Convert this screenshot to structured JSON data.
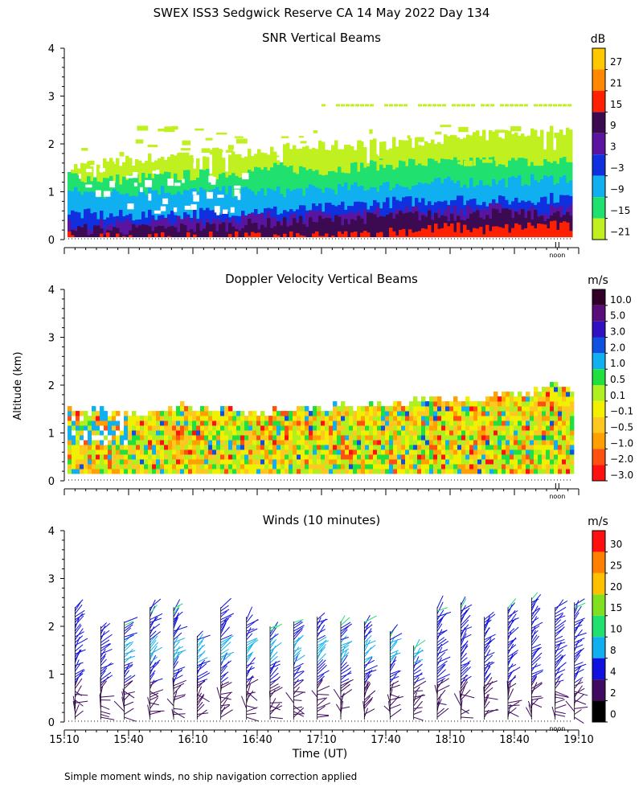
{
  "page": {
    "title": "SWEX ISS3 Sedgwick Reserve CA  14 May 2022 Day 134",
    "ylabel": "Altitude (km)",
    "xlabel": "Time (UT)",
    "footnote": "Simple moment winds, no ship navigation correction applied",
    "noon_label": "noon"
  },
  "chart_data": [
    {
      "type": "heatmap",
      "title": "SNR Vertical Beams",
      "ylim": [
        0,
        4
      ],
      "y_ticks": [
        "0",
        "1",
        "2",
        "3",
        "4"
      ],
      "xlim_minutes_after_1510": [
        0,
        240
      ],
      "colorbar_unit": "dB",
      "colorbar_labels": [
        "27",
        "21",
        "15",
        "9",
        "3",
        "−3",
        "−9",
        "−15",
        "−21"
      ],
      "colorbar_colors": [
        "#ffc800",
        "#ff8800",
        "#ff2000",
        "#3c0a50",
        "#5a14a0",
        "#1030e0",
        "#10b0f0",
        "#20e070",
        "#c0f020"
      ],
      "layers": [
        {
          "color": "#c0f020",
          "low": 0.05,
          "high": [
            1.5,
            1.6,
            1.7,
            1.8,
            1.85,
            1.9,
            1.95,
            2.0,
            2.05,
            2.1,
            2.2,
            2.25,
            2.3
          ]
        },
        {
          "color": "#20e070",
          "low": 0.05,
          "high": [
            1.35,
            1.25,
            1.3,
            1.35,
            1.4,
            1.5,
            1.45,
            1.55,
            1.6,
            1.6,
            1.65,
            1.6,
            1.7
          ]
        },
        {
          "color": "#10b0f0",
          "low": 0.05,
          "high": [
            1.0,
            0.95,
            1.05,
            1.0,
            1.0,
            1.0,
            1.05,
            1.1,
            1.15,
            1.2,
            1.2,
            1.25,
            1.3
          ]
        },
        {
          "color": "#1030e0",
          "low": 0.05,
          "high": [
            0.55,
            0.5,
            0.5,
            0.55,
            0.6,
            0.6,
            0.65,
            0.75,
            0.8,
            0.85,
            0.8,
            0.85,
            0.9
          ]
        },
        {
          "color": "#5a14a0",
          "low": 0.05,
          "high": [
            0.3,
            0.3,
            0.35,
            0.4,
            0.45,
            0.5,
            0.5,
            0.55,
            0.6,
            0.6,
            0.65,
            0.6,
            0.65
          ]
        },
        {
          "color": "#3c0a50",
          "low": 0.05,
          "high": [
            0.22,
            0.2,
            0.22,
            0.25,
            0.3,
            0.35,
            0.4,
            0.45,
            0.5,
            0.5,
            0.55,
            0.5,
            0.5
          ]
        },
        {
          "color": "#ff2000",
          "low": 0.05,
          "high": [
            0.05,
            0.05,
            0.05,
            0.05,
            0.05,
            0.05,
            0.05,
            0.1,
            0.2,
            0.25,
            0.2,
            0.3,
            0.25
          ]
        }
      ],
      "echo_layer": {
        "altitude_km": 2.8,
        "color": "#c0f020"
      }
    },
    {
      "type": "heatmap",
      "title": "Doppler Velocity Vertical Beams",
      "ylim": [
        0,
        4
      ],
      "y_ticks": [
        "0",
        "1",
        "2",
        "3",
        "4"
      ],
      "xlim_minutes_after_1510": [
        0,
        240
      ],
      "colorbar_unit": "m/s",
      "colorbar_labels": [
        "10.0",
        "5.0",
        "3.0",
        "2.0",
        "1.0",
        "0.5",
        "0.1",
        "−0.1",
        "−0.5",
        "−1.0",
        "−2.0",
        "−3.0"
      ],
      "colorbar_colors": [
        "#300028",
        "#5a0c78",
        "#3010c0",
        "#1050e0",
        "#10b0f0",
        "#20e040",
        "#b0f020",
        "#f0f000",
        "#ffc820",
        "#ffa000",
        "#ff5010",
        "#ff1010"
      ],
      "top_km": [
        1.5,
        1.4,
        1.45,
        1.35,
        1.3,
        1.45,
        1.5,
        1.4,
        1.5,
        1.4,
        1.35,
        1.45,
        1.5,
        1.45,
        1.55,
        1.5,
        1.6,
        1.55,
        1.65,
        1.6,
        1.7,
        1.65,
        1.8,
        1.75,
        1.9,
        2.0,
        1.85
      ]
    },
    {
      "type": "scatter",
      "title": "Winds (10 minutes)",
      "ylim": [
        0,
        4
      ],
      "y_ticks": [
        "0",
        "1",
        "2",
        "3",
        "4"
      ],
      "x_ticks": [
        "15:10",
        "15:40",
        "16:10",
        "16:40",
        "17:10",
        "17:40",
        "18:10",
        "18:40",
        "19:10"
      ],
      "xlim_minutes_after_1510": [
        0,
        240
      ],
      "colorbar_unit": "m/s",
      "colorbar_labels": [
        "30",
        "25",
        "20",
        "15",
        "10",
        "8",
        "4",
        "2",
        "0"
      ],
      "colorbar_colors": [
        "#ff1010",
        "#ff8000",
        "#ffc000",
        "#80e020",
        "#20e070",
        "#10b0f0",
        "#1010e0",
        "#400a60",
        "#000000"
      ],
      "profiles": [
        {
          "time_min": 5,
          "top_km": 2.4
        },
        {
          "time_min": 17,
          "top_km": 2.0
        },
        {
          "time_min": 28,
          "top_km": 2.1
        },
        {
          "time_min": 40,
          "top_km": 2.4
        },
        {
          "time_min": 51,
          "top_km": 2.4
        },
        {
          "time_min": 62,
          "top_km": 1.8
        },
        {
          "time_min": 73,
          "top_km": 2.4
        },
        {
          "time_min": 85,
          "top_km": 2.2
        },
        {
          "time_min": 96,
          "top_km": 2.0
        },
        {
          "time_min": 107,
          "top_km": 2.1
        },
        {
          "time_min": 118,
          "top_km": 2.2
        },
        {
          "time_min": 129,
          "top_km": 2.1
        },
        {
          "time_min": 140,
          "top_km": 2.1
        },
        {
          "time_min": 152,
          "top_km": 1.9
        },
        {
          "time_min": 163,
          "top_km": 1.6
        },
        {
          "time_min": 174,
          "top_km": 2.4
        },
        {
          "time_min": 185,
          "top_km": 2.5
        },
        {
          "time_min": 196,
          "top_km": 2.2
        },
        {
          "time_min": 207,
          "top_km": 2.4
        },
        {
          "time_min": 218,
          "top_km": 2.6
        },
        {
          "time_min": 229,
          "top_km": 2.4
        },
        {
          "time_min": 238,
          "top_km": 2.5
        }
      ]
    }
  ]
}
